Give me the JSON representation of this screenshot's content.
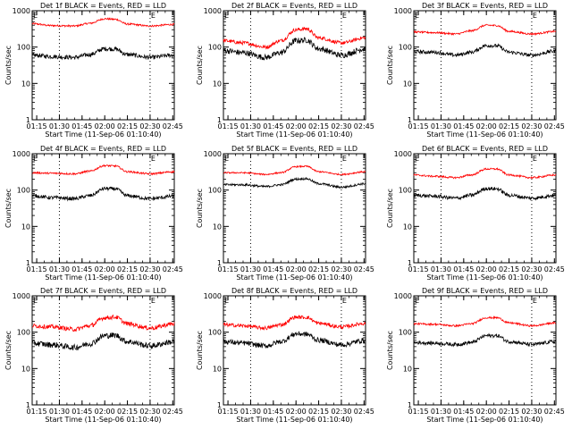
{
  "figure": {
    "ylabel": "Counts/sec",
    "xlabel": "Start Time (11-Sep-06 01:10:40)",
    "marker_label": "E",
    "colors": {
      "events": "#000000",
      "lld": "#ff0000"
    }
  },
  "chart_data": [
    {
      "type": "line",
      "title": "Det 1f BLACK = Events, RED = LLD",
      "x_ticks": [
        "01:15",
        "01:30",
        "01:45",
        "02:00",
        "02:15",
        "02:30",
        "02:45"
      ],
      "y_ticks": [
        "1",
        "10",
        "100",
        "1000"
      ],
      "ylim": [
        1,
        1000
      ],
      "ylog": true,
      "marker_times": [
        "01:30",
        "02:30"
      ],
      "series": [
        {
          "name": "Events",
          "color": "#000000",
          "x": [
            "01:12",
            "01:25",
            "01:40",
            "01:50",
            "02:00",
            "02:07",
            "02:15",
            "02:30",
            "02:46"
          ],
          "values": [
            60,
            55,
            52,
            62,
            90,
            88,
            62,
            52,
            60
          ],
          "noise": 0.06
        },
        {
          "name": "LLD",
          "color": "#ff0000",
          "x": [
            "01:12",
            "01:25",
            "01:40",
            "01:50",
            "02:00",
            "02:07",
            "02:15",
            "02:30",
            "02:46"
          ],
          "values": [
            440,
            390,
            380,
            450,
            600,
            580,
            430,
            380,
            420
          ],
          "noise": 0.025
        }
      ]
    },
    {
      "type": "line",
      "title": "Det 2f BLACK = Events, RED = LLD",
      "x_ticks": [
        "01:15",
        "01:30",
        "01:45",
        "02:00",
        "02:15",
        "02:30",
        "02:45"
      ],
      "y_ticks": [
        "1",
        "10",
        "100",
        "1000"
      ],
      "ylim": [
        1,
        1000
      ],
      "ylog": true,
      "marker_times": [
        "01:30",
        "02:30"
      ],
      "series": [
        {
          "name": "Events",
          "color": "#000000",
          "x": [
            "01:12",
            "01:25",
            "01:40",
            "01:50",
            "02:00",
            "02:07",
            "02:15",
            "02:30",
            "02:46"
          ],
          "values": [
            80,
            70,
            52,
            70,
            150,
            155,
            90,
            60,
            90
          ],
          "noise": 0.08
        },
        {
          "name": "LLD",
          "color": "#ff0000",
          "x": [
            "01:12",
            "01:25",
            "01:40",
            "01:50",
            "02:00",
            "02:07",
            "02:15",
            "02:30",
            "02:46"
          ],
          "values": [
            150,
            130,
            100,
            150,
            300,
            320,
            180,
            130,
            180
          ],
          "noise": 0.05
        }
      ]
    },
    {
      "type": "line",
      "title": "Det 3f BLACK = Events, RED = LLD",
      "x_ticks": [
        "01:15",
        "01:30",
        "01:45",
        "02:00",
        "02:15",
        "02:30",
        "02:45"
      ],
      "y_ticks": [
        "1",
        "10",
        "100",
        "1000"
      ],
      "ylim": [
        1,
        1000
      ],
      "ylog": true,
      "marker_times": [
        "01:30",
        "02:30"
      ],
      "series": [
        {
          "name": "Events",
          "color": "#000000",
          "x": [
            "01:12",
            "01:25",
            "01:40",
            "01:50",
            "02:00",
            "02:07",
            "02:15",
            "02:30",
            "02:46"
          ],
          "values": [
            75,
            72,
            60,
            72,
            110,
            108,
            72,
            60,
            78
          ],
          "noise": 0.05
        },
        {
          "name": "LLD",
          "color": "#ff0000",
          "x": [
            "01:12",
            "01:25",
            "01:40",
            "01:50",
            "02:00",
            "02:07",
            "02:15",
            "02:30",
            "02:46"
          ],
          "values": [
            260,
            250,
            230,
            280,
            400,
            390,
            270,
            230,
            270
          ],
          "noise": 0.025
        }
      ]
    },
    {
      "type": "line",
      "title": "Det 4f BLACK = Events, RED = LLD",
      "x_ticks": [
        "01:15",
        "01:30",
        "01:45",
        "02:00",
        "02:15",
        "02:30",
        "02:45"
      ],
      "y_ticks": [
        "1",
        "10",
        "100",
        "1000"
      ],
      "ylim": [
        1,
        1000
      ],
      "ylog": true,
      "marker_times": [
        "01:30",
        "02:30"
      ],
      "series": [
        {
          "name": "Events",
          "color": "#000000",
          "x": [
            "01:12",
            "01:25",
            "01:40",
            "01:50",
            "02:00",
            "02:07",
            "02:15",
            "02:30",
            "02:46"
          ],
          "values": [
            70,
            62,
            58,
            70,
            110,
            108,
            70,
            58,
            68
          ],
          "noise": 0.05
        },
        {
          "name": "LLD",
          "color": "#ff0000",
          "x": [
            "01:12",
            "01:25",
            "01:40",
            "01:50",
            "02:00",
            "02:07",
            "02:15",
            "02:30",
            "02:46"
          ],
          "values": [
            300,
            290,
            280,
            330,
            470,
            460,
            320,
            280,
            320
          ],
          "noise": 0.025
        }
      ]
    },
    {
      "type": "line",
      "title": "Det 5f BLACK = Events, RED = LLD",
      "x_ticks": [
        "01:15",
        "01:30",
        "01:45",
        "02:00",
        "02:15",
        "02:30",
        "02:45"
      ],
      "y_ticks": [
        "1",
        "10",
        "100",
        "1000"
      ],
      "ylim": [
        1,
        1000
      ],
      "ylog": true,
      "marker_times": [
        "01:30",
        "02:30"
      ],
      "series": [
        {
          "name": "Events",
          "color": "#000000",
          "x": [
            "01:12",
            "01:25",
            "01:40",
            "01:50",
            "02:00",
            "02:07",
            "02:15",
            "02:30",
            "02:46"
          ],
          "values": [
            140,
            140,
            125,
            140,
            200,
            205,
            150,
            120,
            150
          ],
          "noise": 0.03
        },
        {
          "name": "LLD",
          "color": "#ff0000",
          "x": [
            "01:12",
            "01:25",
            "01:40",
            "01:50",
            "02:00",
            "02:07",
            "02:15",
            "02:30",
            "02:46"
          ],
          "values": [
            300,
            300,
            270,
            300,
            440,
            450,
            320,
            270,
            320
          ],
          "noise": 0.02
        }
      ]
    },
    {
      "type": "line",
      "title": "Det 6f BLACK = Events, RED = LLD",
      "x_ticks": [
        "01:15",
        "01:30",
        "01:45",
        "02:00",
        "02:15",
        "02:30",
        "02:45"
      ],
      "y_ticks": [
        "1",
        "10",
        "100",
        "1000"
      ],
      "ylim": [
        1,
        1000
      ],
      "ylog": true,
      "marker_times": [
        "01:30",
        "02:30"
      ],
      "series": [
        {
          "name": "Events",
          "color": "#000000",
          "x": [
            "01:12",
            "01:25",
            "01:40",
            "01:50",
            "02:00",
            "02:07",
            "02:15",
            "02:30",
            "02:46"
          ],
          "values": [
            72,
            68,
            60,
            72,
            110,
            108,
            72,
            60,
            72
          ],
          "noise": 0.05
        },
        {
          "name": "LLD",
          "color": "#ff0000",
          "x": [
            "01:12",
            "01:25",
            "01:40",
            "01:50",
            "02:00",
            "02:07",
            "02:15",
            "02:30",
            "02:46"
          ],
          "values": [
            260,
            240,
            220,
            260,
            380,
            380,
            260,
            220,
            260
          ],
          "noise": 0.025
        }
      ]
    },
    {
      "type": "line",
      "title": "Det 7f BLACK = Events, RED = LLD",
      "x_ticks": [
        "01:15",
        "01:30",
        "01:45",
        "02:00",
        "02:15",
        "02:30",
        "02:45"
      ],
      "y_ticks": [
        "1",
        "10",
        "100",
        "1000"
      ],
      "ylim": [
        1,
        1000
      ],
      "ylog": true,
      "marker_times": [
        "01:30",
        "02:30"
      ],
      "series": [
        {
          "name": "Events",
          "color": "#000000",
          "x": [
            "01:12",
            "01:25",
            "01:40",
            "01:50",
            "02:00",
            "02:07",
            "02:15",
            "02:30",
            "02:46"
          ],
          "values": [
            50,
            45,
            38,
            48,
            80,
            82,
            55,
            42,
            55
          ],
          "noise": 0.08
        },
        {
          "name": "LLD",
          "color": "#ff0000",
          "x": [
            "01:12",
            "01:25",
            "01:40",
            "01:50",
            "02:00",
            "02:07",
            "02:15",
            "02:30",
            "02:46"
          ],
          "values": [
            150,
            140,
            120,
            150,
            250,
            260,
            170,
            130,
            170
          ],
          "noise": 0.06
        }
      ]
    },
    {
      "type": "line",
      "title": "Det 8f BLACK = Events, RED = LLD",
      "x_ticks": [
        "01:15",
        "01:30",
        "01:45",
        "02:00",
        "02:15",
        "02:30",
        "02:45"
      ],
      "y_ticks": [
        "1",
        "10",
        "100",
        "1000"
      ],
      "ylim": [
        1,
        1000
      ],
      "ylog": true,
      "marker_times": [
        "01:30",
        "02:30"
      ],
      "series": [
        {
          "name": "Events",
          "color": "#000000",
          "x": [
            "01:12",
            "01:25",
            "01:40",
            "01:50",
            "02:00",
            "02:07",
            "02:15",
            "02:30",
            "02:46"
          ],
          "values": [
            55,
            50,
            42,
            55,
            90,
            88,
            60,
            45,
            60
          ],
          "noise": 0.07
        },
        {
          "name": "LLD",
          "color": "#ff0000",
          "x": [
            "01:12",
            "01:25",
            "01:40",
            "01:50",
            "02:00",
            "02:07",
            "02:15",
            "02:30",
            "02:46"
          ],
          "values": [
            160,
            150,
            130,
            160,
            260,
            255,
            175,
            140,
            175
          ],
          "noise": 0.05
        }
      ]
    },
    {
      "type": "line",
      "title": "Det 9f BLACK = Events, RED = LLD",
      "x_ticks": [
        "01:15",
        "01:30",
        "01:45",
        "02:00",
        "02:15",
        "02:30",
        "02:45"
      ],
      "y_ticks": [
        "1",
        "10",
        "100",
        "1000"
      ],
      "ylim": [
        1,
        1000
      ],
      "ylog": true,
      "marker_times": [
        "01:30",
        "02:30"
      ],
      "series": [
        {
          "name": "Events",
          "color": "#000000",
          "x": [
            "01:12",
            "01:25",
            "01:40",
            "01:50",
            "02:00",
            "02:07",
            "02:15",
            "02:30",
            "02:46"
          ],
          "values": [
            52,
            50,
            46,
            52,
            80,
            80,
            55,
            46,
            55
          ],
          "noise": 0.05
        },
        {
          "name": "LLD",
          "color": "#ff0000",
          "x": [
            "01:12",
            "01:25",
            "01:40",
            "01:50",
            "02:00",
            "02:07",
            "02:15",
            "02:30",
            "02:46"
          ],
          "values": [
            170,
            165,
            150,
            170,
            250,
            250,
            180,
            150,
            180
          ],
          "noise": 0.025
        }
      ]
    }
  ]
}
